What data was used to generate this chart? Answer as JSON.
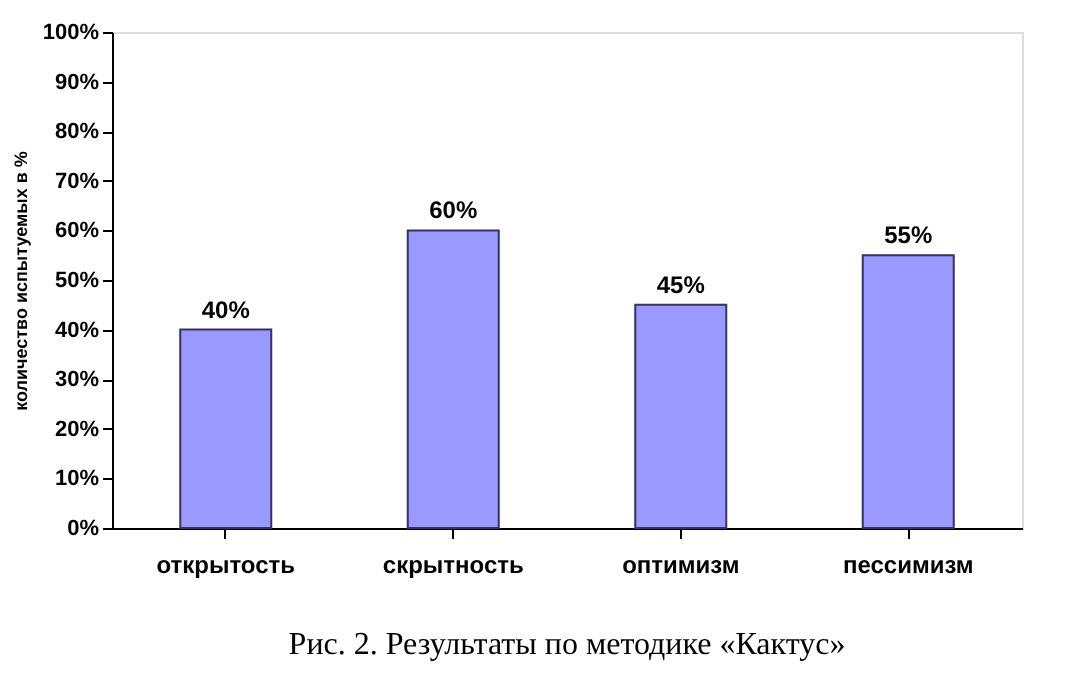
{
  "chart_data": {
    "type": "bar",
    "categories": [
      "открытость",
      "скрытность",
      "оптимизм",
      "пессимизм"
    ],
    "values": [
      40,
      60,
      45,
      55
    ],
    "value_labels": [
      "40%",
      "60%",
      "45%",
      "55%"
    ],
    "color": "#9999ff",
    "ylabel": "количество испытуемых в %",
    "ylim": [
      0,
      100
    ],
    "yticks": [
      {
        "value": 0,
        "label": "0%"
      },
      {
        "value": 10,
        "label": "10%"
      },
      {
        "value": 20,
        "label": "20%"
      },
      {
        "value": 30,
        "label": "30%"
      },
      {
        "value": 40,
        "label": "40%"
      },
      {
        "value": 50,
        "label": "50%"
      },
      {
        "value": 60,
        "label": "60%"
      },
      {
        "value": 70,
        "label": "70%"
      },
      {
        "value": 80,
        "label": "80%"
      },
      {
        "value": 90,
        "label": "90%"
      },
      {
        "value": 100,
        "label": "100%"
      }
    ],
    "grid": false,
    "annotations": [
      "Рис. 2. Результаты по методике «Кактус»"
    ]
  }
}
